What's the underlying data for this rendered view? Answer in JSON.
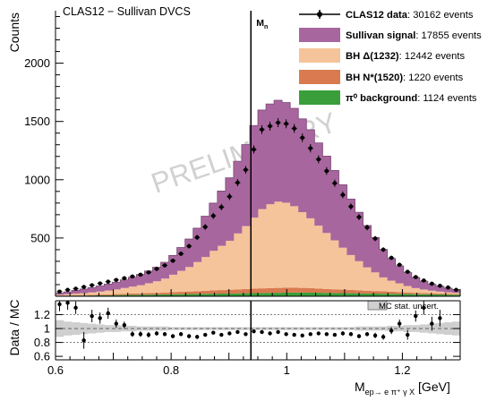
{
  "chart_data": [
    {
      "type": "stacked-histogram",
      "title": "CLAS12 − Sullivan DVCS",
      "ylabel": "Counts",
      "xlim": [
        0.6,
        1.3
      ],
      "ylim": [
        0,
        2450
      ],
      "yticks": [
        500,
        1000,
        1500,
        2000
      ],
      "watermark": "PRELIMINARY",
      "vline": {
        "x": 0.938,
        "label": "M",
        "sub": "n"
      },
      "bin_edges_start": 0.6,
      "bin_width": 0.014,
      "series": [
        {
          "name": "π⁰ background",
          "legend_bold": "π⁰ background",
          "legend_rest": ": 1124 events",
          "color": "#3a9e3a",
          "values": [
            4,
            5,
            6,
            6,
            7,
            8,
            9,
            10,
            11,
            12,
            13,
            14,
            15,
            16,
            17,
            18,
            19,
            20,
            21,
            22,
            23,
            24,
            25,
            26,
            27,
            28,
            29,
            30,
            31,
            32,
            32,
            31,
            30,
            29,
            28,
            27,
            26,
            25,
            24,
            23,
            22,
            21,
            20,
            19,
            18,
            17,
            16,
            15,
            14,
            13
          ]
        },
        {
          "name": "BH N*(1520)",
          "legend_bold": "BH N*(1520)",
          "legend_rest": ": 1220 events",
          "color": "#d97a50",
          "values": [
            3,
            4,
            5,
            5,
            6,
            7,
            8,
            9,
            10,
            11,
            12,
            13,
            14,
            16,
            18,
            20,
            22,
            24,
            26,
            28,
            30,
            32,
            34,
            36,
            38,
            40,
            41,
            42,
            42,
            41,
            40,
            38,
            36,
            34,
            32,
            30,
            28,
            26,
            24,
            22,
            20,
            18,
            16,
            14,
            12,
            11,
            10,
            9,
            8,
            7
          ]
        },
        {
          "name": "BH Δ(1232)",
          "legend_bold": "BH  Δ(1232)",
          "legend_rest": ": 12442 events",
          "color": "#f5c49a",
          "values": [
            5,
            8,
            12,
            16,
            20,
            25,
            32,
            40,
            50,
            60,
            70,
            85,
            100,
            120,
            150,
            180,
            210,
            250,
            290,
            340,
            380,
            420,
            480,
            540,
            610,
            680,
            720,
            740,
            730,
            700,
            650,
            600,
            540,
            480,
            420,
            360,
            300,
            250,
            200,
            160,
            120,
            95,
            75,
            55,
            40,
            30,
            22,
            16,
            12,
            9
          ]
        },
        {
          "name": "Sullivan signal",
          "legend_bold": "Sullivan signal",
          "legend_rest": ": 17855 events",
          "color": "#a8669e",
          "values": [
            15,
            20,
            28,
            35,
            42,
            48,
            55,
            62,
            70,
            80,
            92,
            105,
            120,
            140,
            165,
            200,
            240,
            290,
            350,
            410,
            470,
            540,
            620,
            700,
            790,
            850,
            860,
            870,
            860,
            840,
            800,
            760,
            710,
            660,
            600,
            540,
            480,
            420,
            360,
            300,
            240,
            190,
            150,
            115,
            90,
            70,
            55,
            45,
            35,
            28
          ]
        }
      ],
      "data": {
        "name": "CLAS12 data",
        "legend_bold": "CLAS12 data",
        "legend_rest": ": 30162 events",
        "values": [
          40,
          55,
          65,
          80,
          95,
          110,
          125,
          140,
          155,
          170,
          185,
          205,
          235,
          265,
          305,
          365,
          430,
          505,
          595,
          690,
          765,
          855,
          975,
          1085,
          1260,
          1430,
          1460,
          1490,
          1480,
          1440,
          1360,
          1270,
          1175,
          1075,
          970,
          870,
          770,
          680,
          590,
          495,
          400,
          330,
          270,
          210,
          165,
          135,
          108,
          90,
          75,
          55
        ]
      }
    },
    {
      "type": "ratio",
      "ylabel": "Data / MC",
      "xlabel": "M",
      "xlabel_sub": "ep→ e π⁺ γ X",
      "xlabel_unit": " [GeV]",
      "xlim": [
        0.6,
        1.3
      ],
      "xticks": [
        0.6,
        0.8,
        1.0,
        1.2
      ],
      "xtick_labels": [
        "0.6",
        "0.8",
        "1",
        "1.2"
      ],
      "ylim": [
        0.55,
        1.4
      ],
      "yticks": [
        0.6,
        0.8,
        1.0,
        1.2
      ],
      "ytick_labels": [
        "0.6",
        "0.8",
        "1",
        "1.2"
      ],
      "band_label": "MC stat. uncert.",
      "bin_start": 0.607,
      "bin_step": 0.014,
      "ratio": [
        1.35,
        1.37,
        1.3,
        0.83,
        1.18,
        1.15,
        1.22,
        1.07,
        1.05,
        0.92,
        0.92,
        0.91,
        0.93,
        0.92,
        0.89,
        0.92,
        0.89,
        0.88,
        0.91,
        0.94,
        0.91,
        0.93,
        0.95,
        0.92,
        0.96,
        0.95,
        0.93,
        0.95,
        0.92,
        0.91,
        0.9,
        0.92,
        0.93,
        0.92,
        0.91,
        0.93,
        0.92,
        0.89,
        0.92,
        0.9,
        0.88,
        0.97,
        1.07,
        0.91,
        1.18,
        1.3,
        1.07,
        1.15
      ],
      "errors": [
        0.1,
        0.1,
        0.09,
        0.12,
        0.09,
        0.08,
        0.08,
        0.06,
        0.05,
        0.04,
        0.04,
        0.04,
        0.03,
        0.03,
        0.03,
        0.03,
        0.03,
        0.03,
        0.02,
        0.02,
        0.02,
        0.02,
        0.02,
        0.02,
        0.02,
        0.02,
        0.02,
        0.02,
        0.02,
        0.02,
        0.02,
        0.02,
        0.02,
        0.02,
        0.02,
        0.03,
        0.03,
        0.03,
        0.03,
        0.04,
        0.04,
        0.05,
        0.06,
        0.07,
        0.08,
        0.1,
        0.1,
        0.12
      ],
      "band": [
        0.12,
        0.1,
        0.09,
        0.08,
        0.07,
        0.06,
        0.05,
        0.05,
        0.04,
        0.04,
        0.03,
        0.03,
        0.03,
        0.03,
        0.02,
        0.02,
        0.02,
        0.02,
        0.02,
        0.02,
        0.02,
        0.02,
        0.02,
        0.02,
        0.02,
        0.02,
        0.02,
        0.02,
        0.02,
        0.02,
        0.02,
        0.02,
        0.02,
        0.02,
        0.02,
        0.02,
        0.02,
        0.03,
        0.03,
        0.03,
        0.03,
        0.04,
        0.04,
        0.05,
        0.05,
        0.06,
        0.07,
        0.08,
        0.09,
        0.1
      ]
    }
  ]
}
